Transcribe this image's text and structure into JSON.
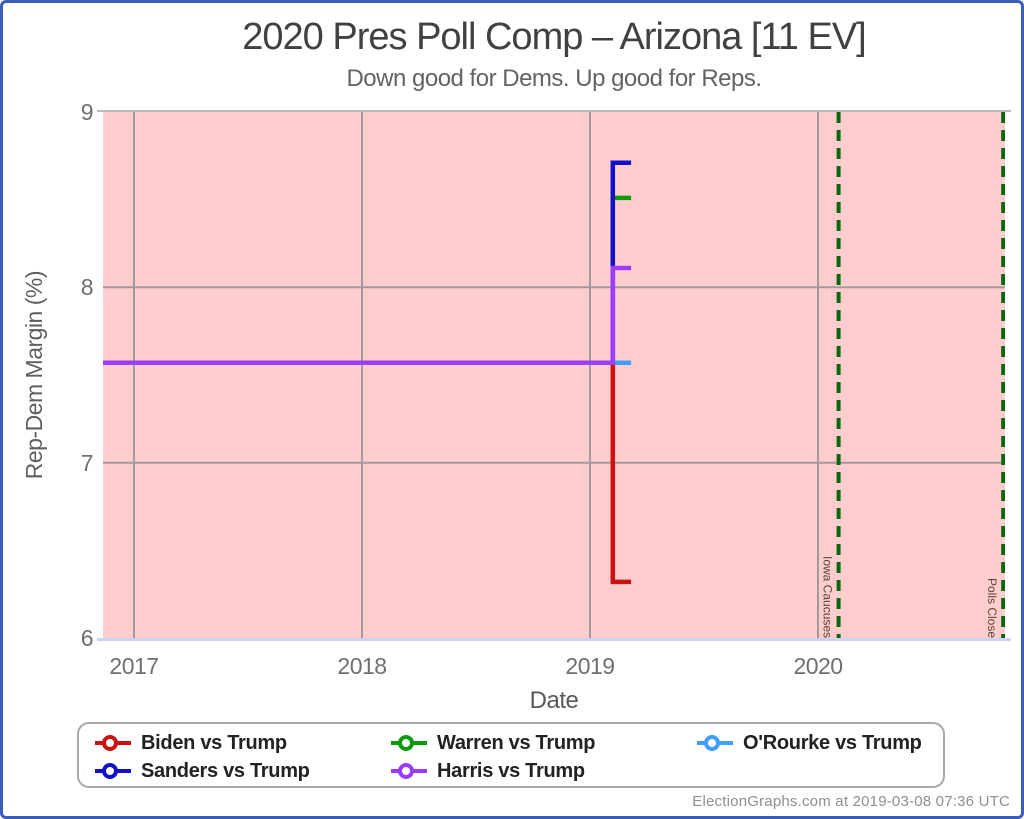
{
  "header": {
    "title": "2020 Pres Poll Comp – Arizona [11 EV]",
    "subtitle": "Down good for Dems. Up good for Reps."
  },
  "footer": {
    "credit": "ElectionGraphs.com at 2019-03-08 07:36 UTC"
  },
  "legend": {
    "items": [
      {
        "label": "Biden vs Trump",
        "color": "#cc1111"
      },
      {
        "label": "Warren vs Trump",
        "color": "#0a9a0a"
      },
      {
        "label": "O'Rourke vs Trump",
        "color": "#3e9fff"
      },
      {
        "label": "Sanders vs Trump",
        "color": "#1111cc"
      },
      {
        "label": "Harris vs Trump",
        "color": "#9d3bff"
      }
    ]
  },
  "chart_data": {
    "type": "line",
    "title": "2020 Pres Poll Comp – Arizona [11 EV]",
    "subtitle": "Down good for Dems. Up good for Reps.",
    "xlabel": "Date",
    "ylabel": "Rep-Dem Margin (%)",
    "xlim": [
      2016.864,
      2020.82
    ],
    "ylim": [
      6,
      9
    ],
    "xticks": [
      2017,
      2018,
      2019,
      2020
    ],
    "yticks": [
      6,
      7,
      8,
      9
    ],
    "grid": true,
    "plot_background": "#ffcdcd",
    "grid_color": "#a39a9c",
    "series": [
      {
        "name": "Biden vs Trump",
        "color": "#cc1111",
        "start_value": 7.57,
        "latest_value": 6.32,
        "points": [
          [
            2016.864,
            7.57
          ],
          [
            2019.1,
            7.57
          ],
          [
            2019.1,
            6.32
          ],
          [
            2019.18,
            6.32
          ]
        ]
      },
      {
        "name": "Warren vs Trump",
        "color": "#0a9a0a",
        "start_value": 7.57,
        "latest_value": 8.51,
        "points": [
          [
            2016.864,
            7.57
          ],
          [
            2019.1,
            7.57
          ],
          [
            2019.1,
            8.51
          ],
          [
            2019.18,
            8.51
          ]
        ]
      },
      {
        "name": "Sanders vs Trump",
        "color": "#1111cc",
        "start_value": 7.57,
        "latest_value": 8.71,
        "points": [
          [
            2016.864,
            7.57
          ],
          [
            2019.1,
            7.57
          ],
          [
            2019.1,
            8.71
          ],
          [
            2019.18,
            8.71
          ]
        ]
      },
      {
        "name": "O'Rourke vs Trump",
        "color": "#3e9fff",
        "start_value": 7.57,
        "latest_value": 7.57,
        "points": [
          [
            2016.864,
            7.57
          ],
          [
            2019.18,
            7.57
          ]
        ]
      },
      {
        "name": "Harris vs Trump",
        "color": "#9d3bff",
        "start_value": 7.57,
        "latest_value": 8.11,
        "points": [
          [
            2016.864,
            7.57
          ],
          [
            2019.1,
            7.57
          ],
          [
            2019.1,
            8.11
          ],
          [
            2019.18,
            8.11
          ]
        ]
      }
    ],
    "annotations": [
      {
        "label": "Iowa Caucuses",
        "x": 2020.09,
        "style": "dashed",
        "color": "#0a660a"
      },
      {
        "label": "Polls Close",
        "x": 2020.812,
        "style": "dashed",
        "color": "#0a660a"
      }
    ]
  }
}
